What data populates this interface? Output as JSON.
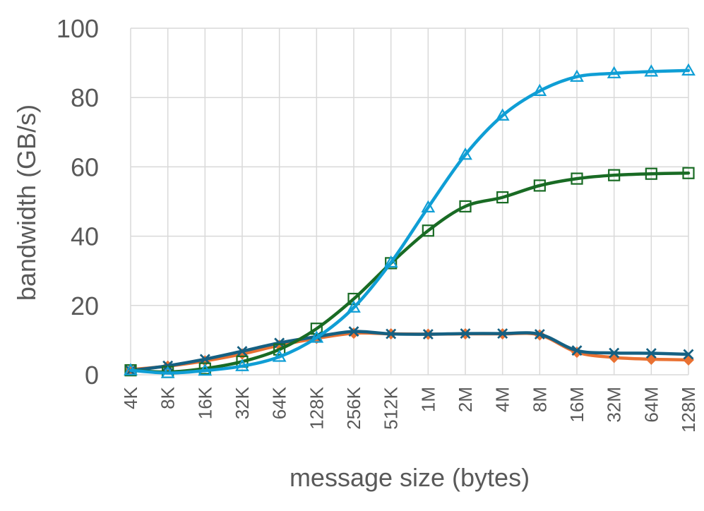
{
  "chart_data": {
    "type": "line",
    "title": "",
    "xlabel": "message size (bytes)",
    "ylabel": "bandwidth (GB/s)",
    "ylim": [
      0,
      100
    ],
    "yticks": [
      "0",
      "20",
      "40",
      "60",
      "80",
      "100"
    ],
    "grid": "on",
    "legend": "none",
    "categories": [
      "4K",
      "8K",
      "16K",
      "32K",
      "64K",
      "128K",
      "256K",
      "512K",
      "1M",
      "2M",
      "4M",
      "8M",
      "16M",
      "32M",
      "64M",
      "128M"
    ],
    "series": [
      {
        "color": "#E97132",
        "marker": "diamond",
        "values": [
          1.5,
          2.5,
          4,
          6,
          8.5,
          10.5,
          12,
          11.8,
          11.7,
          11.8,
          11.8,
          11.5,
          6.5,
          5,
          4.5,
          4.3
        ]
      },
      {
        "color": "#156082",
        "marker": "x",
        "values": [
          1.2,
          2.6,
          4.5,
          6.8,
          9.2,
          11,
          12.5,
          11.8,
          11.7,
          11.9,
          11.9,
          11.7,
          7,
          6.3,
          6.2,
          5.9
        ]
      },
      {
        "color": "#196B24",
        "marker": "square",
        "values": [
          1.3,
          0.8,
          1.8,
          3.8,
          7.3,
          13.3,
          21.9,
          32.2,
          41.6,
          48.6,
          51.2,
          54.6,
          56.6,
          57.6,
          58,
          58.2
        ]
      },
      {
        "color": "#0F9ED5",
        "marker": "triangle",
        "values": [
          1.3,
          0.5,
          1.2,
          2.5,
          5.2,
          10.7,
          19.4,
          32.4,
          48.3,
          63.5,
          74.8,
          81.9,
          86,
          87,
          87.5,
          87.8
        ]
      }
    ]
  }
}
